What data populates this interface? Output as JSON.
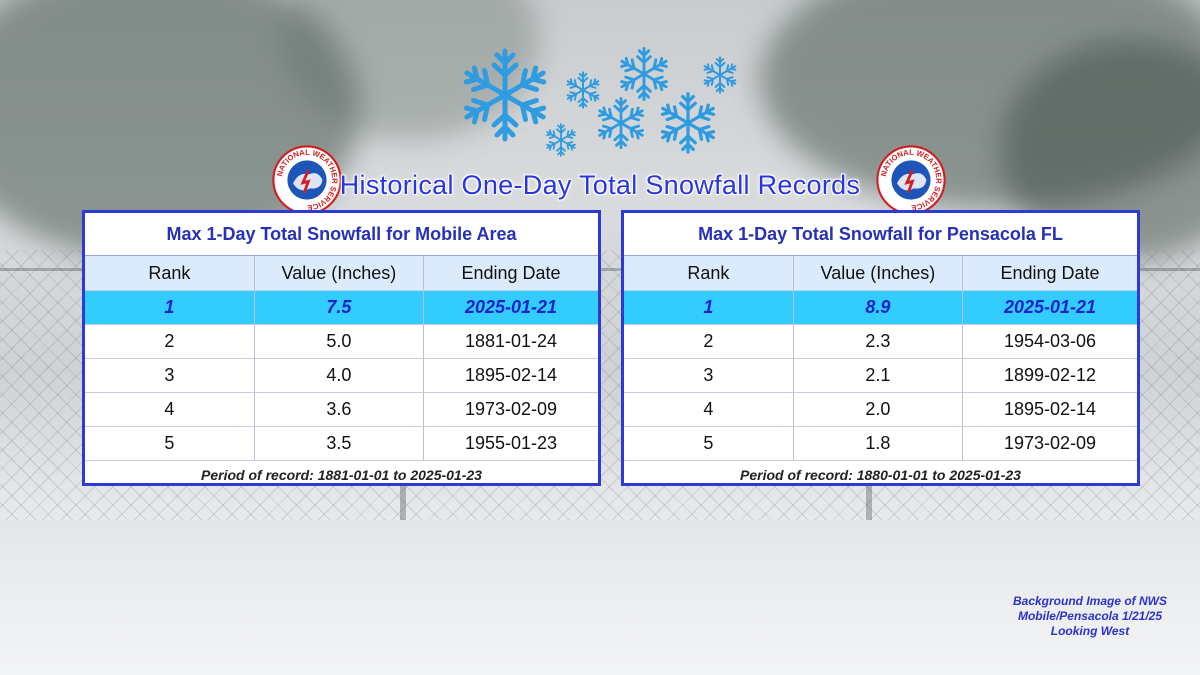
{
  "title": "Historical One-Day Total Snowfall Records",
  "logo_text": "NATIONAL WEATHER SERVICE",
  "columns": [
    "Rank",
    "Value (Inches)",
    "Ending Date"
  ],
  "tables": [
    {
      "title": "Max 1-Day Total Snowfall for Mobile Area",
      "rows": [
        {
          "rank": "1",
          "value": "7.5",
          "date": "2025-01-21"
        },
        {
          "rank": "2",
          "value": "5.0",
          "date": "1881-01-24"
        },
        {
          "rank": "3",
          "value": "4.0",
          "date": "1895-02-14"
        },
        {
          "rank": "4",
          "value": "3.6",
          "date": "1973-02-09"
        },
        {
          "rank": "5",
          "value": "3.5",
          "date": "1955-01-23"
        }
      ],
      "period": "Period of record: 1881-01-01 to 2025-01-23"
    },
    {
      "title": "Max 1-Day Total Snowfall for Pensacola FL",
      "rows": [
        {
          "rank": "1",
          "value": "8.9",
          "date": "2025-01-21"
        },
        {
          "rank": "2",
          "value": "2.3",
          "date": "1954-03-06"
        },
        {
          "rank": "3",
          "value": "2.1",
          "date": "1899-02-12"
        },
        {
          "rank": "4",
          "value": "2.0",
          "date": "1895-02-14"
        },
        {
          "rank": "5",
          "value": "1.8",
          "date": "1973-02-09"
        }
      ],
      "period": "Period of record: 1880-01-01 to 2025-01-23"
    }
  ],
  "credit": [
    "Background Image of NWS",
    "Mobile/Pensacola 1/21/25",
    "Looking West"
  ],
  "colors": {
    "accent": "#2b3bd3",
    "highlight_row": "#33ccff",
    "header_row": "#dcebfb",
    "snowflake": "#3aa0dc"
  }
}
